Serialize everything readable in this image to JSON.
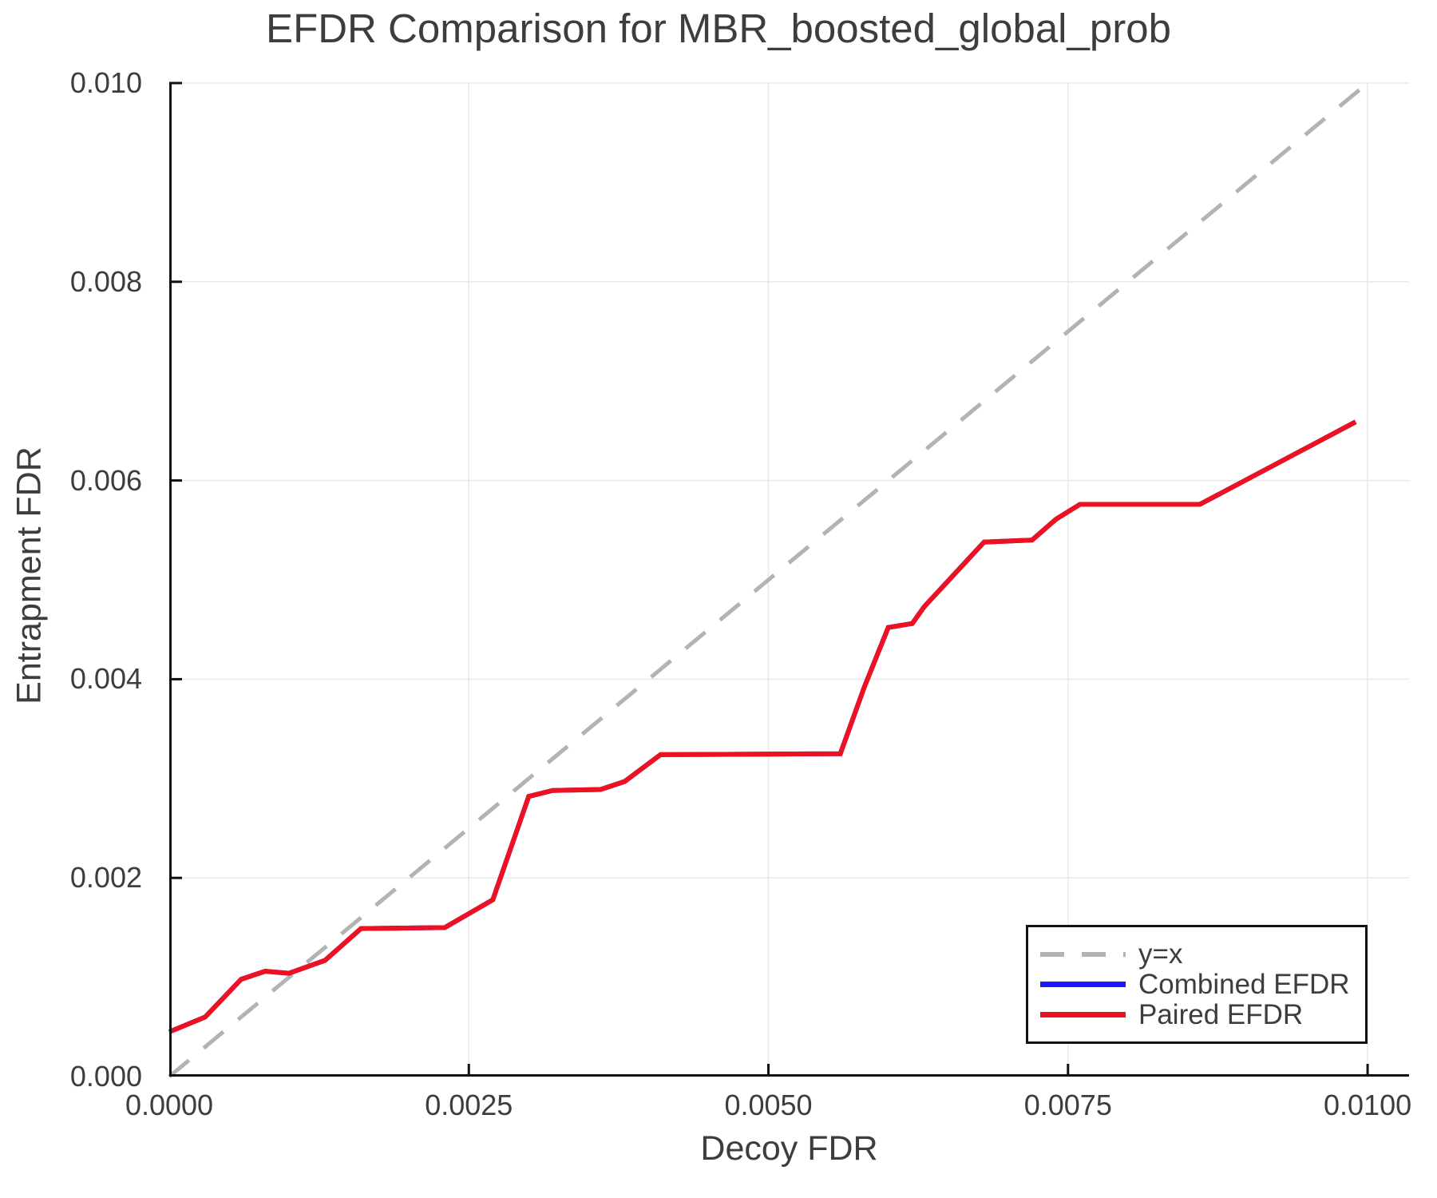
{
  "chart_data": {
    "type": "line",
    "title": "EFDR Comparison for MBR_boosted_global_prob",
    "xlabel": "Decoy FDR",
    "ylabel": "Entrapment FDR",
    "xlim": [
      0.0,
      0.010346
    ],
    "ylim": [
      0.0,
      0.01
    ],
    "grid": true,
    "legend_position": "bottom-right",
    "x_ticks": {
      "values": [
        0.0,
        0.0025,
        0.005,
        0.0075,
        0.01
      ],
      "labels": [
        "0.0000",
        "0.0025",
        "0.0050",
        "0.0075",
        "0.0100"
      ]
    },
    "y_ticks": {
      "values": [
        0.0,
        0.002,
        0.004,
        0.006,
        0.008,
        0.01
      ],
      "labels": [
        "0.000",
        "0.002",
        "0.004",
        "0.006",
        "0.008",
        "0.010"
      ]
    },
    "style": {
      "grid_color": "#e8e8e8",
      "spine_color": "#111111",
      "text_color": "#3d3d3d",
      "background": "#ffffff"
    },
    "series": [
      {
        "name": "y=x",
        "color": "#b3b3b3",
        "style": "dashed",
        "x": [
          0.0,
          0.01
        ],
        "y": [
          0.0,
          0.01
        ]
      },
      {
        "name": "Combined EFDR",
        "color": "#1a1aff",
        "style": "solid",
        "x": [
          0.0,
          0.0003,
          0.0006,
          0.0008,
          0.001,
          0.0013,
          0.0016,
          0.0023,
          0.0027,
          0.003,
          0.0032,
          0.0036,
          0.0038,
          0.0041,
          0.0056,
          0.0058,
          0.006,
          0.0062,
          0.0063,
          0.0066,
          0.0068,
          0.0072,
          0.0074,
          0.0076,
          0.0086,
          0.0099
        ],
        "y": [
          0.00045,
          0.0006,
          0.00098,
          0.00106,
          0.00104,
          0.00117,
          0.00149,
          0.0015,
          0.00178,
          0.00282,
          0.00288,
          0.00289,
          0.00297,
          0.00324,
          0.00325,
          0.00392,
          0.00452,
          0.00456,
          0.00473,
          0.00512,
          0.00538,
          0.0054,
          0.00561,
          0.00576,
          0.00576,
          0.00659
        ]
      },
      {
        "name": "Paired EFDR",
        "color": "#ed1122",
        "style": "solid",
        "x": [
          0.0,
          0.0003,
          0.0006,
          0.0008,
          0.001,
          0.0013,
          0.0016,
          0.0023,
          0.0027,
          0.003,
          0.0032,
          0.0036,
          0.0038,
          0.0041,
          0.0056,
          0.0058,
          0.006,
          0.0062,
          0.0063,
          0.0066,
          0.0068,
          0.0072,
          0.0074,
          0.0076,
          0.0086,
          0.0099
        ],
        "y": [
          0.00045,
          0.0006,
          0.00098,
          0.00106,
          0.00104,
          0.00117,
          0.00149,
          0.0015,
          0.00178,
          0.00282,
          0.00288,
          0.00289,
          0.00297,
          0.00324,
          0.00325,
          0.00392,
          0.00452,
          0.00456,
          0.00473,
          0.00512,
          0.00538,
          0.0054,
          0.00561,
          0.00576,
          0.00576,
          0.00659
        ]
      }
    ]
  }
}
